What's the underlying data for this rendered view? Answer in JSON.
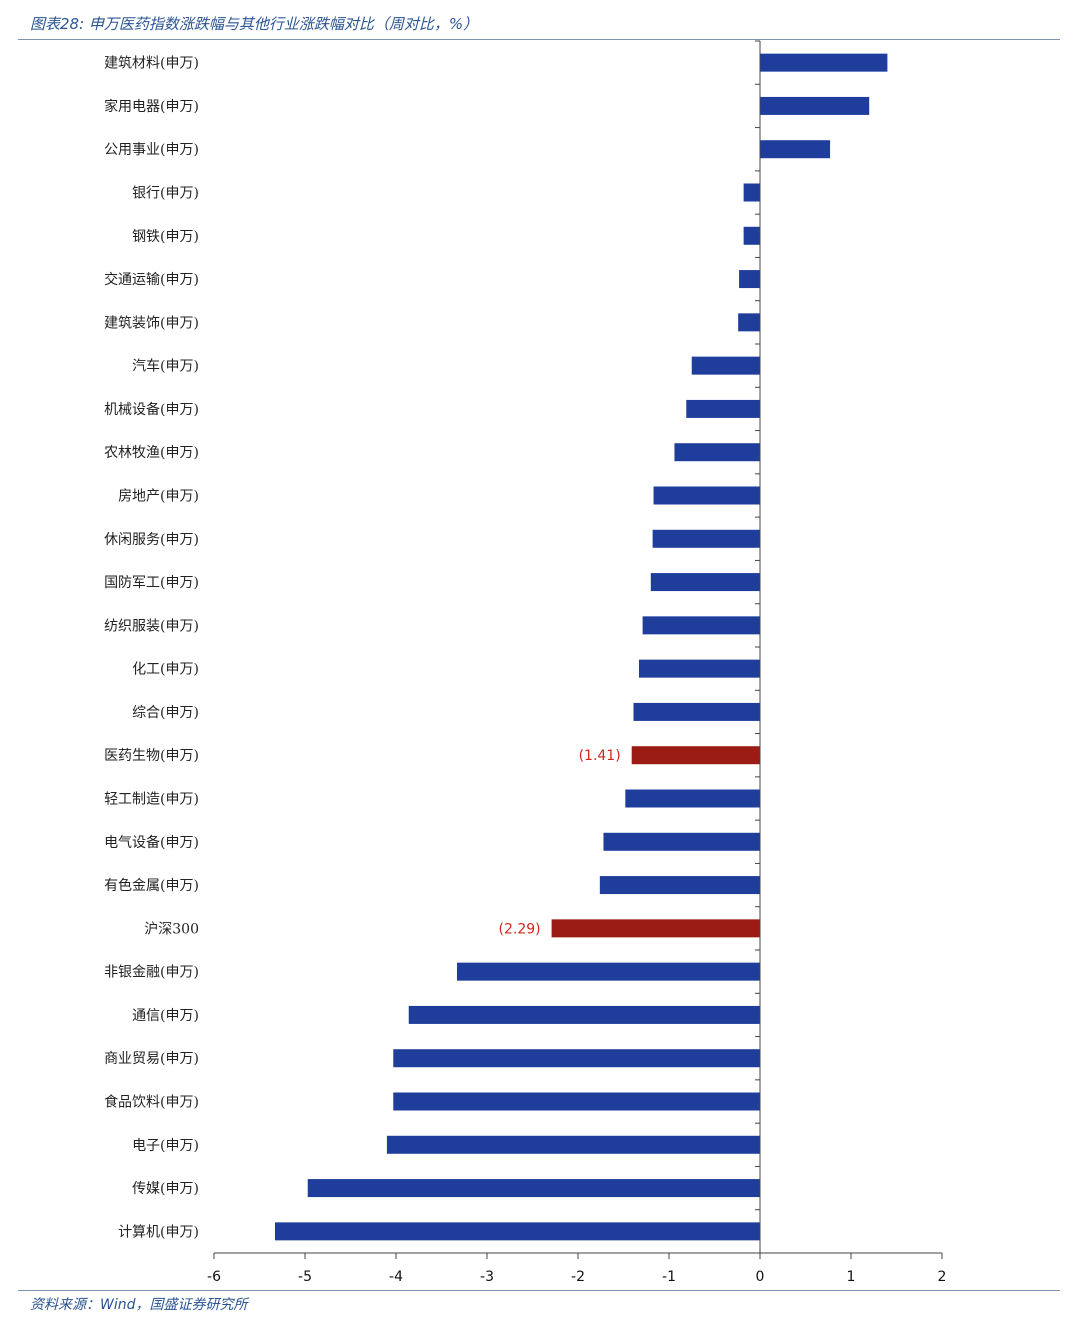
{
  "figure": {
    "title": "图表28:  申万医药指数涨跌幅与其他行业涨跌幅对比（周对比，%）",
    "source": "资料来源：Wind，国盛证券研究所"
  },
  "colors": {
    "bar_default": "#1f3e9c",
    "bar_highlight": "#9b1c14",
    "label_highlight": "#d2281e",
    "axis": "#444444",
    "rule": "#7d93b4",
    "caption": "#2a5592"
  },
  "chart_data": {
    "type": "bar",
    "orientation": "horizontal",
    "title": "",
    "xlabel": "",
    "ylabel": "",
    "xlim": [
      -6,
      2
    ],
    "xticks": [
      "-6",
      "-5",
      "-4",
      "-3",
      "-2",
      "-1",
      "0",
      "1",
      "2"
    ],
    "grid": false,
    "legend": "none",
    "categories": [
      "建筑材料(申万)",
      "家用电器(申万)",
      "公用事业(申万)",
      "银行(申万)",
      "钢铁(申万)",
      "交通运输(申万)",
      "建筑装饰(申万)",
      "汽车(申万)",
      "机械设备(申万)",
      "农林牧渔(申万)",
      "房地产(申万)",
      "休闲服务(申万)",
      "国防军工(申万)",
      "纺织服装(申万)",
      "化工(申万)",
      "综合(申万)",
      "医药生物(申万)",
      "轻工制造(申万)",
      "电气设备(申万)",
      "有色金属(申万)",
      "沪深300",
      "非银金融(申万)",
      "通信(申万)",
      "商业贸易(申万)",
      "食品饮料(申万)",
      "电子(申万)",
      "传媒(申万)",
      "计算机(申万)"
    ],
    "values": [
      1.4,
      1.2,
      0.77,
      -0.18,
      -0.18,
      -0.23,
      -0.24,
      -0.75,
      -0.81,
      -0.94,
      -1.17,
      -1.18,
      -1.2,
      -1.29,
      -1.33,
      -1.39,
      -1.41,
      -1.48,
      -1.72,
      -1.76,
      -2.29,
      -3.33,
      -3.86,
      -4.03,
      -4.03,
      -4.1,
      -4.97,
      -5.33
    ],
    "highlighted": [
      "医药生物(申万)",
      "沪深300"
    ],
    "data_labels": [
      {
        "category": "医药生物(申万)",
        "text": "(1.41)"
      },
      {
        "category": "沪深300",
        "text": "(2.29)"
      }
    ]
  }
}
